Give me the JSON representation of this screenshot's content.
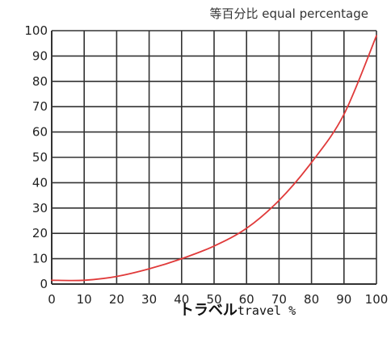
{
  "chart_data": {
    "type": "line",
    "title": "等百分比  equal percentage",
    "xlabel_main": "トラベル",
    "xlabel_unit": "travel %",
    "xlim": [
      0,
      100
    ],
    "ylim": [
      0,
      100
    ],
    "x_ticks": [
      "0",
      "10",
      "20",
      "30",
      "40",
      "50",
      "60",
      "70",
      "80",
      "90",
      "100"
    ],
    "y_ticks": [
      "0",
      "10",
      "20",
      "30",
      "40",
      "50",
      "60",
      "70",
      "80",
      "90",
      "100"
    ],
    "grid": true,
    "series": [
      {
        "color": "#e03a3a",
        "x": [
          0,
          10,
          20,
          30,
          40,
          50,
          60,
          70,
          80,
          90,
          100
        ],
        "y": [
          1.5,
          1.5,
          3,
          6,
          10,
          15,
          22,
          33,
          48,
          67,
          98
        ]
      }
    ]
  },
  "colors": {
    "grid": "#333333",
    "axis": "#111111",
    "background": "#ffffff"
  }
}
